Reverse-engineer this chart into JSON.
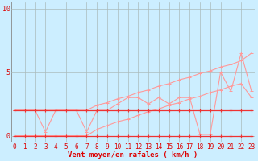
{
  "xlabel": "Vent moyen/en rafales ( km/h )",
  "background_color": "#cceeff",
  "grid_color": "#aabbbb",
  "line_color_dark": "#ee3333",
  "line_color_light": "#ff9999",
  "xlim": [
    -0.3,
    23.3
  ],
  "ylim": [
    -0.5,
    10.5
  ],
  "yticks": [
    0,
    5,
    10
  ],
  "xticks": [
    0,
    1,
    2,
    3,
    4,
    5,
    6,
    7,
    8,
    9,
    10,
    11,
    12,
    13,
    14,
    15,
    16,
    17,
    18,
    19,
    20,
    21,
    22,
    23
  ],
  "x": [
    0,
    1,
    2,
    3,
    4,
    5,
    6,
    7,
    8,
    9,
    10,
    11,
    12,
    13,
    14,
    15,
    16,
    17,
    18,
    19,
    20,
    21,
    22,
    23
  ],
  "y_flat": [
    2,
    2,
    2,
    2,
    2,
    2,
    2,
    2,
    2,
    2,
    2,
    2,
    2,
    2,
    2,
    2,
    2,
    2,
    2,
    2,
    2,
    2,
    2,
    2
  ],
  "y_zero": [
    0,
    0,
    0,
    0,
    0,
    0,
    0,
    0,
    0,
    0,
    0,
    0,
    0,
    0,
    0,
    0,
    0,
    0,
    0,
    0,
    0,
    0,
    0,
    0
  ],
  "y_trend_upper": [
    2.0,
    2.0,
    2.0,
    2.0,
    2.0,
    2.0,
    2.0,
    2.0,
    2.4,
    2.6,
    2.9,
    3.1,
    3.4,
    3.6,
    3.9,
    4.1,
    4.4,
    4.6,
    4.9,
    5.1,
    5.4,
    5.6,
    5.9,
    6.5
  ],
  "y_trend_lower": [
    0.0,
    0.0,
    0.0,
    0.0,
    0.0,
    0.0,
    0.0,
    0.0,
    0.5,
    0.8,
    1.1,
    1.3,
    1.6,
    1.9,
    2.1,
    2.4,
    2.6,
    2.9,
    3.1,
    3.4,
    3.6,
    3.9,
    4.1,
    3.0
  ],
  "y_jagged": [
    2.0,
    2.0,
    2.0,
    0.3,
    2.0,
    2.0,
    2.0,
    0.3,
    2.0,
    2.0,
    2.5,
    3.0,
    3.0,
    2.5,
    3.0,
    2.5,
    3.0,
    3.0,
    0.1,
    0.1,
    5.0,
    3.5,
    6.5,
    3.5
  ],
  "xlabel_color": "#dd0000",
  "xlabel_fontsize": 6.5,
  "tick_fontsize": 5.5,
  "tick_color": "#dd0000"
}
